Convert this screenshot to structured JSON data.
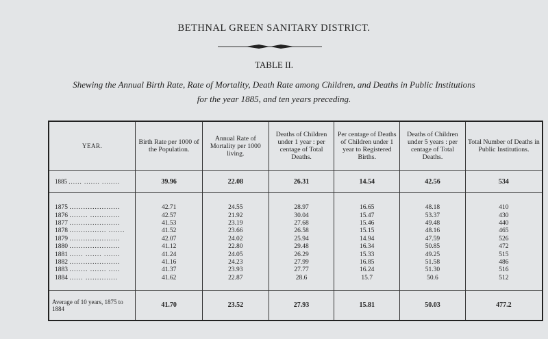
{
  "heading": "BETHNAL GREEN SANITARY DISTRICT.",
  "table_label": "TABLE II.",
  "caption_line1": "Shewing the Annual Birth Rate, Rate of Mortality, Death Rate among Children, and Deaths in Public Institutions",
  "caption_line2": "for the year 1885, and ten years preceding.",
  "columns": [
    "YEAR.",
    "Birth Rate per 1000 of the Population.",
    "Annual Rate of Mortality per 1000 living.",
    "Deaths of Children under 1 year : per centage of Total Deaths.",
    "Per centage of Deaths of Children under 1 year to Registered Births.",
    "Deaths of Children under 5 years : per centage of Total Deaths.",
    "Total Number of Deaths in Public Institutions."
  ],
  "current": {
    "year": "1885",
    "dots": "...... ....... ........",
    "values": [
      "39.96",
      "22.08",
      "26.31",
      "14.54",
      "42.56",
      "534"
    ]
  },
  "rows": [
    {
      "year": "1875",
      "dots": "......................",
      "values": [
        "42.71",
        "24.55",
        "28.97",
        "16.65",
        "48.18",
        "410"
      ]
    },
    {
      "year": "1876",
      "dots": "........ .............",
      "values": [
        "42.57",
        "21.92",
        "30.04",
        "15.47",
        "53.37",
        "430"
      ]
    },
    {
      "year": "1877",
      "dots": "......................",
      "values": [
        "41.53",
        "23.19",
        "27.68",
        "15.46",
        "49.48",
        "440"
      ]
    },
    {
      "year": "1878",
      "dots": "................ .......",
      "values": [
        "41.52",
        "23.66",
        "26.58",
        "15.15",
        "48.16",
        "465"
      ]
    },
    {
      "year": "1879",
      "dots": "......................",
      "values": [
        "42.07",
        "24.02",
        "25.94",
        "14.94",
        "47.59",
        "526"
      ]
    },
    {
      "year": "1880",
      "dots": "......................",
      "values": [
        "41.12",
        "22.80",
        "29.48",
        "16.34",
        "50.85",
        "472"
      ]
    },
    {
      "year": "1881",
      "dots": "...... ....... .......",
      "values": [
        "41.24",
        "24.05",
        "26.29",
        "15.33",
        "49.25",
        "515"
      ]
    },
    {
      "year": "1882",
      "dots": "......................",
      "values": [
        "41.16",
        "24.23",
        "27.99",
        "16.85",
        "51.58",
        "486"
      ]
    },
    {
      "year": "1883",
      "dots": "........ ....... .....",
      "values": [
        "41.37",
        "23.93",
        "27.77",
        "16.24",
        "51.30",
        "516"
      ]
    },
    {
      "year": "1884",
      "dots": "...... ..............",
      "values": [
        "41.62",
        "22.87",
        "28.6",
        "15.7",
        "50.6",
        "512"
      ]
    }
  ],
  "average": {
    "label": "Average of 10 years, 1875 to 1884",
    "values": [
      "41.70",
      "23.52",
      "27.93",
      "15.81",
      "50.03",
      "477.2"
    ]
  }
}
